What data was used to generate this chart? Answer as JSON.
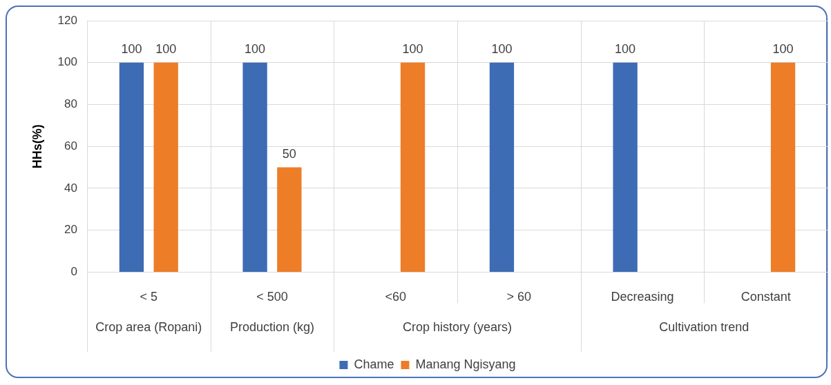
{
  "chart_data": {
    "type": "bar",
    "ylabel": "HHs(%)",
    "categories": [
      "< 5",
      "< 500",
      "<60",
      "> 60",
      "Decreasing",
      "Constant"
    ],
    "series": [
      {
        "name": "Chame",
        "color": "#3d6bb4",
        "values": [
          100,
          100,
          null,
          100,
          100,
          null
        ]
      },
      {
        "name": "Manang Ngisyang",
        "color": "#ed7d27",
        "values": [
          100,
          50,
          100,
          null,
          null,
          100
        ]
      }
    ],
    "ylim": [
      0,
      120
    ],
    "yticks": [
      0,
      20,
      40,
      60,
      80,
      100,
      120
    ],
    "grid": true,
    "legend": "bottom",
    "data_labels": true,
    "annotations": [
      "Crop area (Ropani)",
      "Production (kg)",
      "Crop history (years)",
      "Cultivation trend"
    ]
  }
}
